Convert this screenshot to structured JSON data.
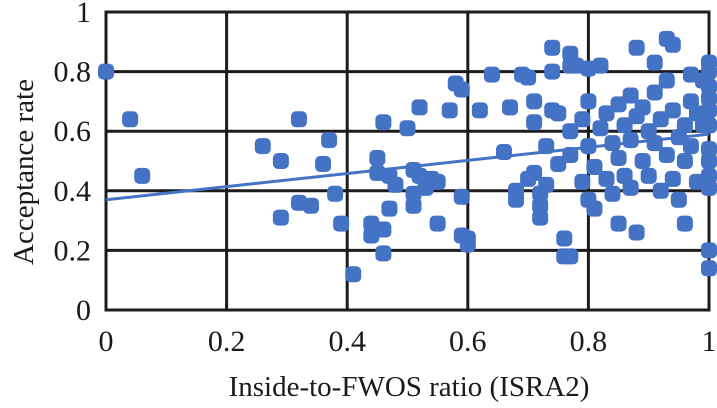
{
  "chart_data": {
    "type": "scatter",
    "title": "",
    "xlabel": "Inside-to-FWOS ratio (ISRA2)",
    "ylabel": "Acceptance rate",
    "xlim": [
      0,
      1
    ],
    "ylim": [
      0,
      1
    ],
    "x_ticks": [
      "0",
      "0.2",
      "0.4",
      "0.6",
      "0.8",
      "1"
    ],
    "y_ticks": [
      "0",
      "0.2",
      "0.4",
      "0.6",
      "0.8",
      "1"
    ],
    "grid": true,
    "legend": null,
    "marker_color": "#4472c4",
    "trendline": {
      "type": "linear",
      "x": [
        0,
        1
      ],
      "y": [
        0.37,
        0.59
      ]
    },
    "series": [
      {
        "name": "Acceptance rate",
        "points": [
          [
            0.0,
            0.8
          ],
          [
            0.04,
            0.64
          ],
          [
            0.06,
            0.45
          ],
          [
            0.26,
            0.55
          ],
          [
            0.29,
            0.5
          ],
          [
            0.29,
            0.31
          ],
          [
            0.32,
            0.64
          ],
          [
            0.32,
            0.36
          ],
          [
            0.34,
            0.35
          ],
          [
            0.36,
            0.49
          ],
          [
            0.37,
            0.57
          ],
          [
            0.38,
            0.39
          ],
          [
            0.39,
            0.29
          ],
          [
            0.41,
            0.12
          ],
          [
            0.44,
            0.25
          ],
          [
            0.44,
            0.29
          ],
          [
            0.45,
            0.51
          ],
          [
            0.45,
            0.46
          ],
          [
            0.46,
            0.63
          ],
          [
            0.46,
            0.19
          ],
          [
            0.46,
            0.27
          ],
          [
            0.47,
            0.45
          ],
          [
            0.47,
            0.34
          ],
          [
            0.48,
            0.42
          ],
          [
            0.5,
            0.61
          ],
          [
            0.51,
            0.47
          ],
          [
            0.51,
            0.39
          ],
          [
            0.51,
            0.35
          ],
          [
            0.52,
            0.68
          ],
          [
            0.52,
            0.45
          ],
          [
            0.53,
            0.41
          ],
          [
            0.54,
            0.44
          ],
          [
            0.55,
            0.43
          ],
          [
            0.55,
            0.29
          ],
          [
            0.57,
            0.67
          ],
          [
            0.58,
            0.76
          ],
          [
            0.59,
            0.74
          ],
          [
            0.59,
            0.38
          ],
          [
            0.59,
            0.25
          ],
          [
            0.6,
            0.24
          ],
          [
            0.6,
            0.22
          ],
          [
            0.62,
            0.67
          ],
          [
            0.64,
            0.79
          ],
          [
            0.66,
            0.53
          ],
          [
            0.67,
            0.68
          ],
          [
            0.68,
            0.37
          ],
          [
            0.68,
            0.4
          ],
          [
            0.69,
            0.79
          ],
          [
            0.7,
            0.78
          ],
          [
            0.7,
            0.44
          ],
          [
            0.71,
            0.63
          ],
          [
            0.71,
            0.7
          ],
          [
            0.71,
            0.46
          ],
          [
            0.72,
            0.35
          ],
          [
            0.72,
            0.39
          ],
          [
            0.72,
            0.31
          ],
          [
            0.73,
            0.55
          ],
          [
            0.73,
            0.42
          ],
          [
            0.74,
            0.67
          ],
          [
            0.74,
            0.88
          ],
          [
            0.74,
            0.8
          ],
          [
            0.75,
            0.49
          ],
          [
            0.75,
            0.66
          ],
          [
            0.76,
            0.24
          ],
          [
            0.76,
            0.18
          ],
          [
            0.77,
            0.86
          ],
          [
            0.77,
            0.82
          ],
          [
            0.77,
            0.6
          ],
          [
            0.77,
            0.52
          ],
          [
            0.77,
            0.18
          ],
          [
            0.78,
            0.82
          ],
          [
            0.79,
            0.64
          ],
          [
            0.79,
            0.43
          ],
          [
            0.8,
            0.81
          ],
          [
            0.8,
            0.7
          ],
          [
            0.8,
            0.55
          ],
          [
            0.8,
            0.37
          ],
          [
            0.81,
            0.48
          ],
          [
            0.81,
            0.34
          ],
          [
            0.82,
            0.82
          ],
          [
            0.82,
            0.61
          ],
          [
            0.83,
            0.66
          ],
          [
            0.83,
            0.44
          ],
          [
            0.84,
            0.56
          ],
          [
            0.84,
            0.39
          ],
          [
            0.85,
            0.69
          ],
          [
            0.85,
            0.51
          ],
          [
            0.85,
            0.29
          ],
          [
            0.86,
            0.62
          ],
          [
            0.86,
            0.45
          ],
          [
            0.87,
            0.72
          ],
          [
            0.87,
            0.57
          ],
          [
            0.87,
            0.41
          ],
          [
            0.88,
            0.88
          ],
          [
            0.88,
            0.26
          ],
          [
            0.88,
            0.65
          ],
          [
            0.89,
            0.5
          ],
          [
            0.89,
            0.68
          ],
          [
            0.9,
            0.6
          ],
          [
            0.9,
            0.45
          ],
          [
            0.91,
            0.83
          ],
          [
            0.91,
            0.73
          ],
          [
            0.91,
            0.56
          ],
          [
            0.92,
            0.64
          ],
          [
            0.92,
            0.4
          ],
          [
            0.93,
            0.91
          ],
          [
            0.93,
            0.77
          ],
          [
            0.93,
            0.52
          ],
          [
            0.94,
            0.89
          ],
          [
            0.94,
            0.67
          ],
          [
            0.94,
            0.44
          ],
          [
            0.95,
            0.58
          ],
          [
            0.95,
            0.37
          ],
          [
            0.96,
            0.29
          ],
          [
            0.96,
            0.5
          ],
          [
            0.96,
            0.62
          ],
          [
            0.97,
            0.79
          ],
          [
            0.97,
            0.7
          ],
          [
            0.97,
            0.55
          ],
          [
            0.98,
            0.66
          ],
          [
            0.98,
            0.43
          ],
          [
            0.99,
            0.77
          ],
          [
            0.99,
            0.62
          ],
          [
            1.0,
            0.83
          ],
          [
            1.0,
            0.8
          ],
          [
            1.0,
            0.75
          ],
          [
            1.0,
            0.71
          ],
          [
            1.0,
            0.67
          ],
          [
            1.0,
            0.62
          ],
          [
            1.0,
            0.54
          ],
          [
            1.0,
            0.5
          ],
          [
            1.0,
            0.45
          ],
          [
            1.0,
            0.41
          ],
          [
            1.0,
            0.2
          ],
          [
            1.0,
            0.14
          ]
        ]
      }
    ]
  }
}
